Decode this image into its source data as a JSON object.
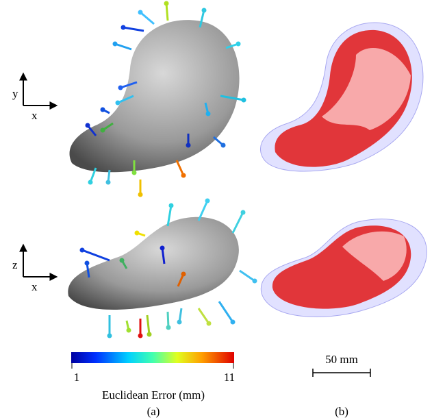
{
  "panel_a": {
    "views": [
      {
        "vertical_axis": "y",
        "horizontal_axis": "x"
      },
      {
        "vertical_axis": "z",
        "horizontal_axis": "x"
      }
    ],
    "colorbar": {
      "min": 1,
      "max": 11,
      "label": "Euclidean Error (mm)"
    },
    "caption": "(a)"
  },
  "panel_b": {
    "scale_bar": "50 mm",
    "caption": "(b)"
  }
}
